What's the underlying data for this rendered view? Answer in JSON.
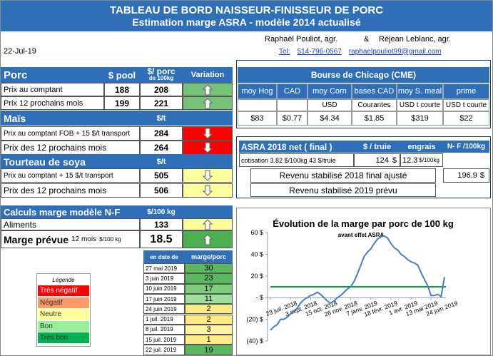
{
  "header": {
    "title": "TABLEAU DE BORD NAISSEUR-FINISSEUR DE PORC",
    "subtitle": "Estimation marge ASRA - modèle 2014 actualisé",
    "author1": "Raphaël Pouliot, agr.",
    "amp": "&",
    "author2": "Réjean Leblanc, agr.",
    "date": "22-Jul-19",
    "tel": "Tel:",
    "phone": "514-796-0567",
    "email": "raphaelpouliot99@gmail.com"
  },
  "porc": {
    "title": "Porc",
    "col_pool": "$ pool",
    "col_price": "$/ porc",
    "col_price_unit": "de 100kg",
    "col_var": "Variation",
    "rows": [
      {
        "label": "Prix au comptant",
        "pool": 188,
        "price": 208,
        "trend": "up",
        "color": "#77c27a"
      },
      {
        "label": "Prix 12 prochains mois",
        "pool": 199,
        "price": 221,
        "trend": "up",
        "color": "#77c27a"
      }
    ]
  },
  "mais": {
    "title": "Maïs",
    "unit": "$/t",
    "rows": [
      {
        "label": "Prix au comptant FOB + 15 $/t transport",
        "price": 284,
        "trend": "down",
        "color": "#ff0000"
      },
      {
        "label": "Prix des 12 prochains mois",
        "price": 264,
        "trend": "down",
        "color": "#ff0000"
      }
    ]
  },
  "soya": {
    "title": "Tourteau de soya",
    "unit": "$/t",
    "rows": [
      {
        "label": "Prix au comptant + 15 $/t  transport",
        "price": 505,
        "trend": "down",
        "color": "#ffff9e"
      },
      {
        "label": "Prix des 12 prochains mois",
        "price": 506,
        "trend": "down",
        "color": "#ffff9e"
      }
    ]
  },
  "calc": {
    "title": "Calculs marge  modèle N-F",
    "unit": "$/100 kg",
    "aliments": {
      "label": "Aliments",
      "value": 133,
      "trend": "up",
      "color": "#ffff9e"
    },
    "marge": {
      "label": "Marge prévue",
      "note": "12 mois",
      "unit": "$/100 kg",
      "value": 18.5,
      "trend": "up",
      "color": "#4cb050"
    }
  },
  "history": {
    "col_date": "en date de",
    "col_value": "marge/porc",
    "rows": [
      {
        "date": "27 mai 2019",
        "value": 30,
        "color": "#5cb85c"
      },
      {
        "date": "3 juin 2019",
        "value": 23,
        "color": "#5cb85c"
      },
      {
        "date": "10 juin 2019",
        "value": 17,
        "color": "#7ccd7c"
      },
      {
        "date": "17 juin 2019",
        "value": 11,
        "color": "#9be09b"
      },
      {
        "date": "24 juin 2019",
        "value": 2,
        "color": "#ffeb84"
      },
      {
        "date": "1 juil. 2019",
        "value": 2,
        "color": "#ffeb84"
      },
      {
        "date": "8 juil. 2019",
        "value": 3,
        "color": "#fff2a0"
      },
      {
        "date": "15 juil. 2019",
        "value": 1,
        "color": "#ffeb84"
      },
      {
        "date": "22 juil. 2019",
        "value": 19,
        "color": "#5cb85c"
      }
    ]
  },
  "legend": {
    "title": "Légende",
    "items": [
      {
        "label": "Très négatif",
        "color": "#ff0000"
      },
      {
        "label": "Négatif",
        "color": "#ff9966"
      },
      {
        "label": "Neutre",
        "color": "#ffff99"
      },
      {
        "label": "Bon",
        "color": "#99ee99"
      },
      {
        "label": "Très bon",
        "color": "#00b050"
      }
    ]
  },
  "cme": {
    "title": "Bourse de Chicago (CME)",
    "columns": [
      {
        "name": "moy Hog",
        "value": "$83"
      },
      {
        "name": "CAD",
        "value": "$0.77"
      },
      {
        "name": "moy Corn",
        "unit": "USD",
        "value": "$4.34"
      },
      {
        "name": "bases CAD",
        "unit": "Courantes",
        "value": "$1.85"
      },
      {
        "name": "moy S. meal",
        "unit": "USD t courte",
        "value": "$319"
      },
      {
        "name": "prime",
        "unit": "USD t courte",
        "value": "$22"
      }
    ]
  },
  "asra": {
    "title": "ASRA 2018 net ( final )",
    "col_truie": "$ / truie",
    "col_engrais": "engrais",
    "col_nf": "N- F /100kg",
    "cotisation": "cotisation 3.82 $/100kg  43 $/truie",
    "truie": 124,
    "truie_unit": "$",
    "engrais": 12.3,
    "engrais_unit": "$/100kg",
    "revenu2018": "Revenu stabilisé 2018  final ajusté",
    "revenu2018_value": 196.9,
    "revenu2018_unit": "$",
    "revenu2019": "Revenu stabilisé 2019 prévu"
  },
  "chart_data": {
    "type": "line",
    "title": "Évolution de la marge par porc de 100 kg",
    "subtitle": "avant effet ASRA",
    "categories": [
      "23 juil. 2018",
      null,
      null,
      null,
      null,
      null,
      "3 sept. 2018",
      null,
      null,
      null,
      null,
      null,
      "15 oct. 2018",
      null,
      null,
      null,
      null,
      null,
      "26 nov. 2018",
      null,
      null,
      null,
      null,
      null,
      "7 janv. 2019",
      null,
      null,
      null,
      null,
      null,
      "18 févr. 2019",
      null,
      null,
      null,
      null,
      null,
      "1 avr. 2019",
      null,
      null,
      null,
      null,
      null,
      "13 mai 2019",
      null,
      null,
      null,
      null,
      null,
      "24 juin 2019",
      null,
      null,
      null,
      null
    ],
    "series": [
      {
        "color": "#4a7ebb",
        "values": [
          -30,
          -27,
          -25,
          -20,
          -20,
          -18,
          -15,
          -12,
          -10,
          -5,
          -2,
          0,
          2,
          3,
          5,
          3,
          0,
          -3,
          -5,
          -3,
          0,
          2,
          5,
          8,
          10,
          15,
          22,
          30,
          38,
          42,
          45,
          50,
          54,
          56,
          57,
          55,
          50,
          46,
          44,
          40,
          38,
          35,
          33,
          32,
          30,
          23,
          17,
          11,
          2,
          2,
          3,
          1,
          19
        ]
      }
    ],
    "reference": {
      "value": 10,
      "color": "#00a040"
    },
    "ylim": [
      -40,
      60
    ],
    "yticks": [
      {
        "value": -40,
        "label": "(40) $"
      },
      {
        "value": -20,
        "label": "(20) $"
      },
      {
        "value": 0,
        "label": "- $"
      },
      {
        "value": 20,
        "label": "20 $"
      },
      {
        "value": 40,
        "label": "40 $"
      },
      {
        "value": 60,
        "label": "60 $"
      }
    ]
  }
}
